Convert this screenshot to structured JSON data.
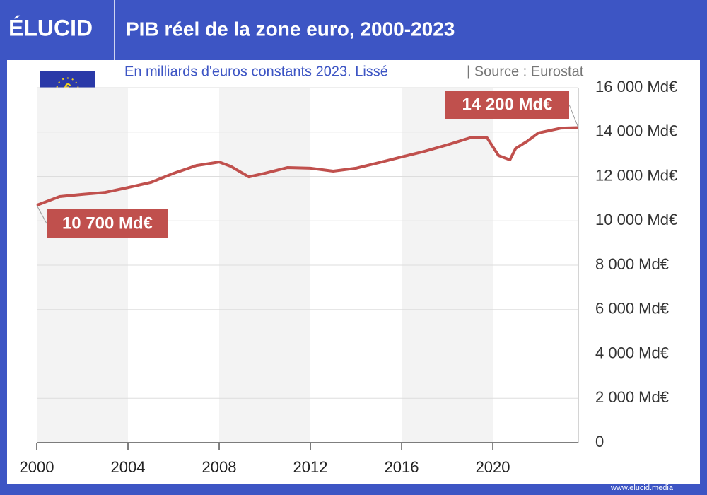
{
  "brand": "ÉLUCID",
  "footer": "www.elucid.media",
  "chart_data": {
    "type": "line",
    "title": "PIB réel de la zone euro, 2000-2023",
    "subtitle": "En milliards d'euros constants 2023. Lissé",
    "source": "|  Source : Eurostat",
    "x": [
      2000,
      2001,
      2002,
      2003,
      2004,
      2005,
      2006,
      2007,
      2008,
      2008.5,
      2009.3,
      2010,
      2011,
      2012,
      2013,
      2014,
      2015,
      2016,
      2017,
      2018,
      2019,
      2019.75,
      2020.25,
      2020.75,
      2021,
      2021.5,
      2022,
      2023,
      2023.75
    ],
    "series": [
      {
        "name": "PIB réel",
        "color": "#c0504d",
        "values": [
          10700,
          11090,
          11190,
          11280,
          11500,
          11730,
          12140,
          12490,
          12650,
          12460,
          11980,
          12140,
          12400,
          12370,
          12240,
          12370,
          12620,
          12880,
          13130,
          13420,
          13740,
          13740,
          12940,
          12750,
          13260,
          13580,
          13960,
          14180,
          14200
        ]
      }
    ],
    "annotations": [
      {
        "x": 2000,
        "y": 10700,
        "label": "10 700 Md€"
      },
      {
        "x": 2023.75,
        "y": 14200,
        "label": "14 200 Md€"
      }
    ],
    "xlim": [
      2000,
      2023.75
    ],
    "xticks": [
      2000,
      2004,
      2008,
      2012,
      2016,
      2020
    ],
    "ylim": [
      0,
      16000
    ],
    "yticks": [
      0,
      {
        "value": 2000,
        "label": "2 000 Md€"
      },
      {
        "value": 4000,
        "label": "4 000 Md€"
      },
      {
        "value": 6000,
        "label": "6 000 Md€"
      },
      {
        "value": 8000,
        "label": "8 000 Md€"
      },
      {
        "value": 10000,
        "label": "10 000 Md€"
      },
      {
        "value": 12000,
        "label": "12 000 Md€"
      },
      {
        "value": 14000,
        "label": "14 000 Md€"
      },
      {
        "value": 16000,
        "label": "16 000 Md€"
      }
    ],
    "grid": true
  }
}
